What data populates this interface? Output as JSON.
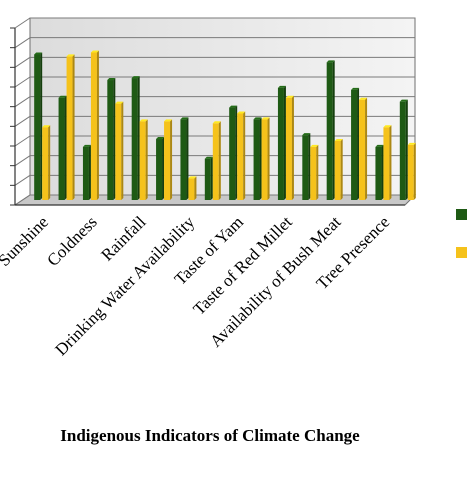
{
  "chart_data": {
    "type": "bar",
    "title": "",
    "xlabel": "Indigenous Indicators of Climate Change",
    "ylabel": "",
    "categories": [
      "Sunshine",
      "",
      "Coldness",
      "",
      "Rainfall",
      "",
      "Drinking Water Availability",
      "",
      "Taste of Yam",
      "",
      "Taste of Red Millet",
      "",
      "Availability of Bush Meat",
      "",
      "Tree Presence",
      ""
    ],
    "series": [
      {
        "name": "",
        "color": "#1e5a14",
        "values": [
          74,
          52,
          27,
          61,
          62,
          31,
          41,
          21,
          47,
          41,
          57,
          33,
          70,
          56,
          27,
          50
        ]
      },
      {
        "name": "",
        "color": "#f5c21b",
        "values": [
          37,
          73,
          75,
          49,
          40,
          40,
          11,
          39,
          44,
          41,
          52,
          27,
          30,
          51,
          37,
          28
        ]
      }
    ],
    "ylim": [
      0,
      90
    ],
    "grid": true,
    "legend": "right"
  }
}
